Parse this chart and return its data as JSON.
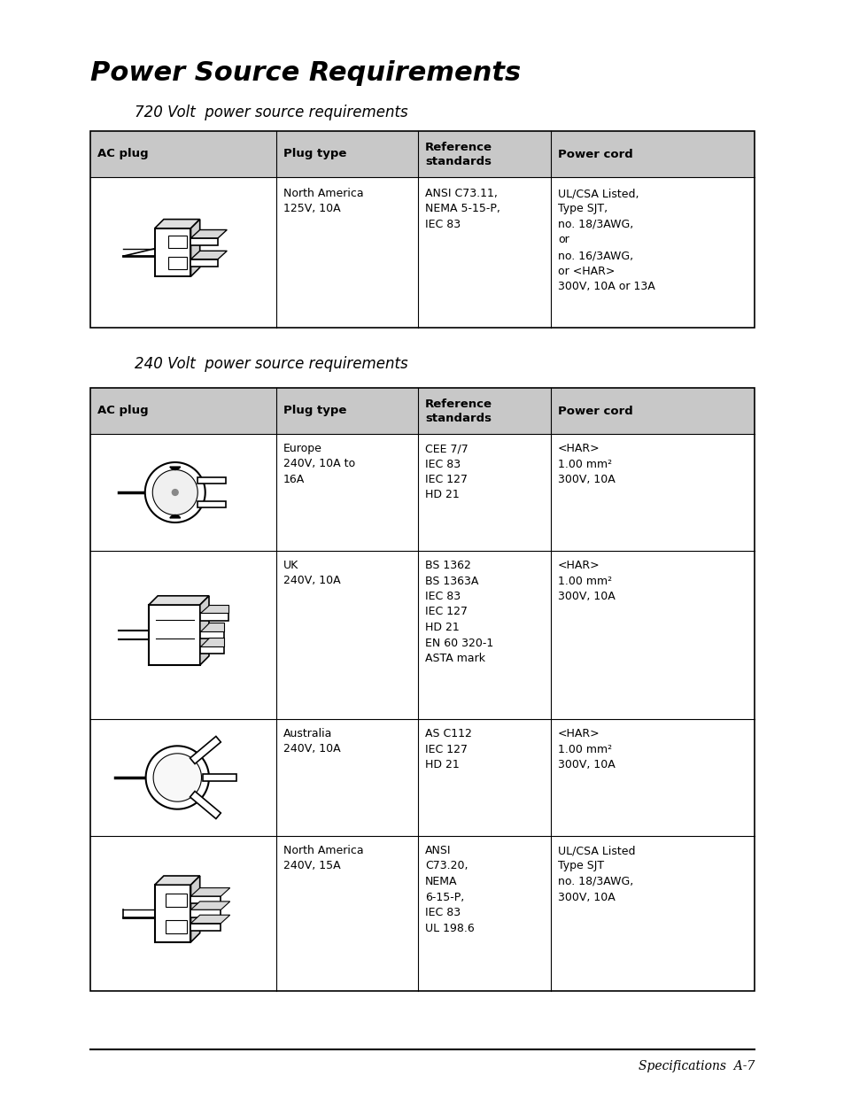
{
  "title": "Power Source Requirements",
  "subtitle_720": "720 Volt  power source requirements",
  "subtitle_240": "240 Volt  power source requirements",
  "footer": "Specifications  A-7",
  "bg_color": "#ffffff",
  "text_color": "#000000",
  "header_bg": "#cccccc",
  "line_color": "#000000",
  "table_720": {
    "headers": [
      "AC plug",
      "Plug type",
      "Reference\nstandards",
      "Power cord"
    ],
    "rows": [
      {
        "plug_type": "North America\n125V, 10A",
        "ref_standards": "ANSI C73.11,\nNEMA 5-15-P,\nIEC 83",
        "power_cord": "UL/CSA Listed,\nType SJT,\nno. 18/3AWG,\nor\nno. 16/3AWG,\nor <HAR>\n300V, 10A or 13A"
      }
    ]
  },
  "table_240": {
    "headers": [
      "AC plug",
      "Plug type",
      "Reference\nstandards",
      "Power cord"
    ],
    "rows": [
      {
        "plug_type": "Europe\n240V, 10A to\n16A",
        "ref_standards": "CEE 7/7\nIEC 83\nIEC 127\nHD 21",
        "power_cord": "<HAR>\n1.00 mm²\n300V, 10A"
      },
      {
        "plug_type": "UK\n240V, 10A",
        "ref_standards": "BS 1362\nBS 1363A\nIEC 83\nIEC 127\nHD 21\nEN 60 320-1\nASTA mark",
        "power_cord": "<HAR>\n1.00 mm²\n300V, 10A"
      },
      {
        "plug_type": "Australia\n240V, 10A",
        "ref_standards": "AS C112\nIEC 127\nHD 21",
        "power_cord": "<HAR>\n1.00 mm²\n300V, 10A"
      },
      {
        "plug_type": "North America\n240V, 15A",
        "ref_standards": "ANSI\nC73.20,\nNEMA\n6-15-P,\nIEC 83\nUL 198.6",
        "power_cord": "UL/CSA Listed\nType SJT\nno. 18/3AWG,\n300V, 10A"
      }
    ]
  }
}
